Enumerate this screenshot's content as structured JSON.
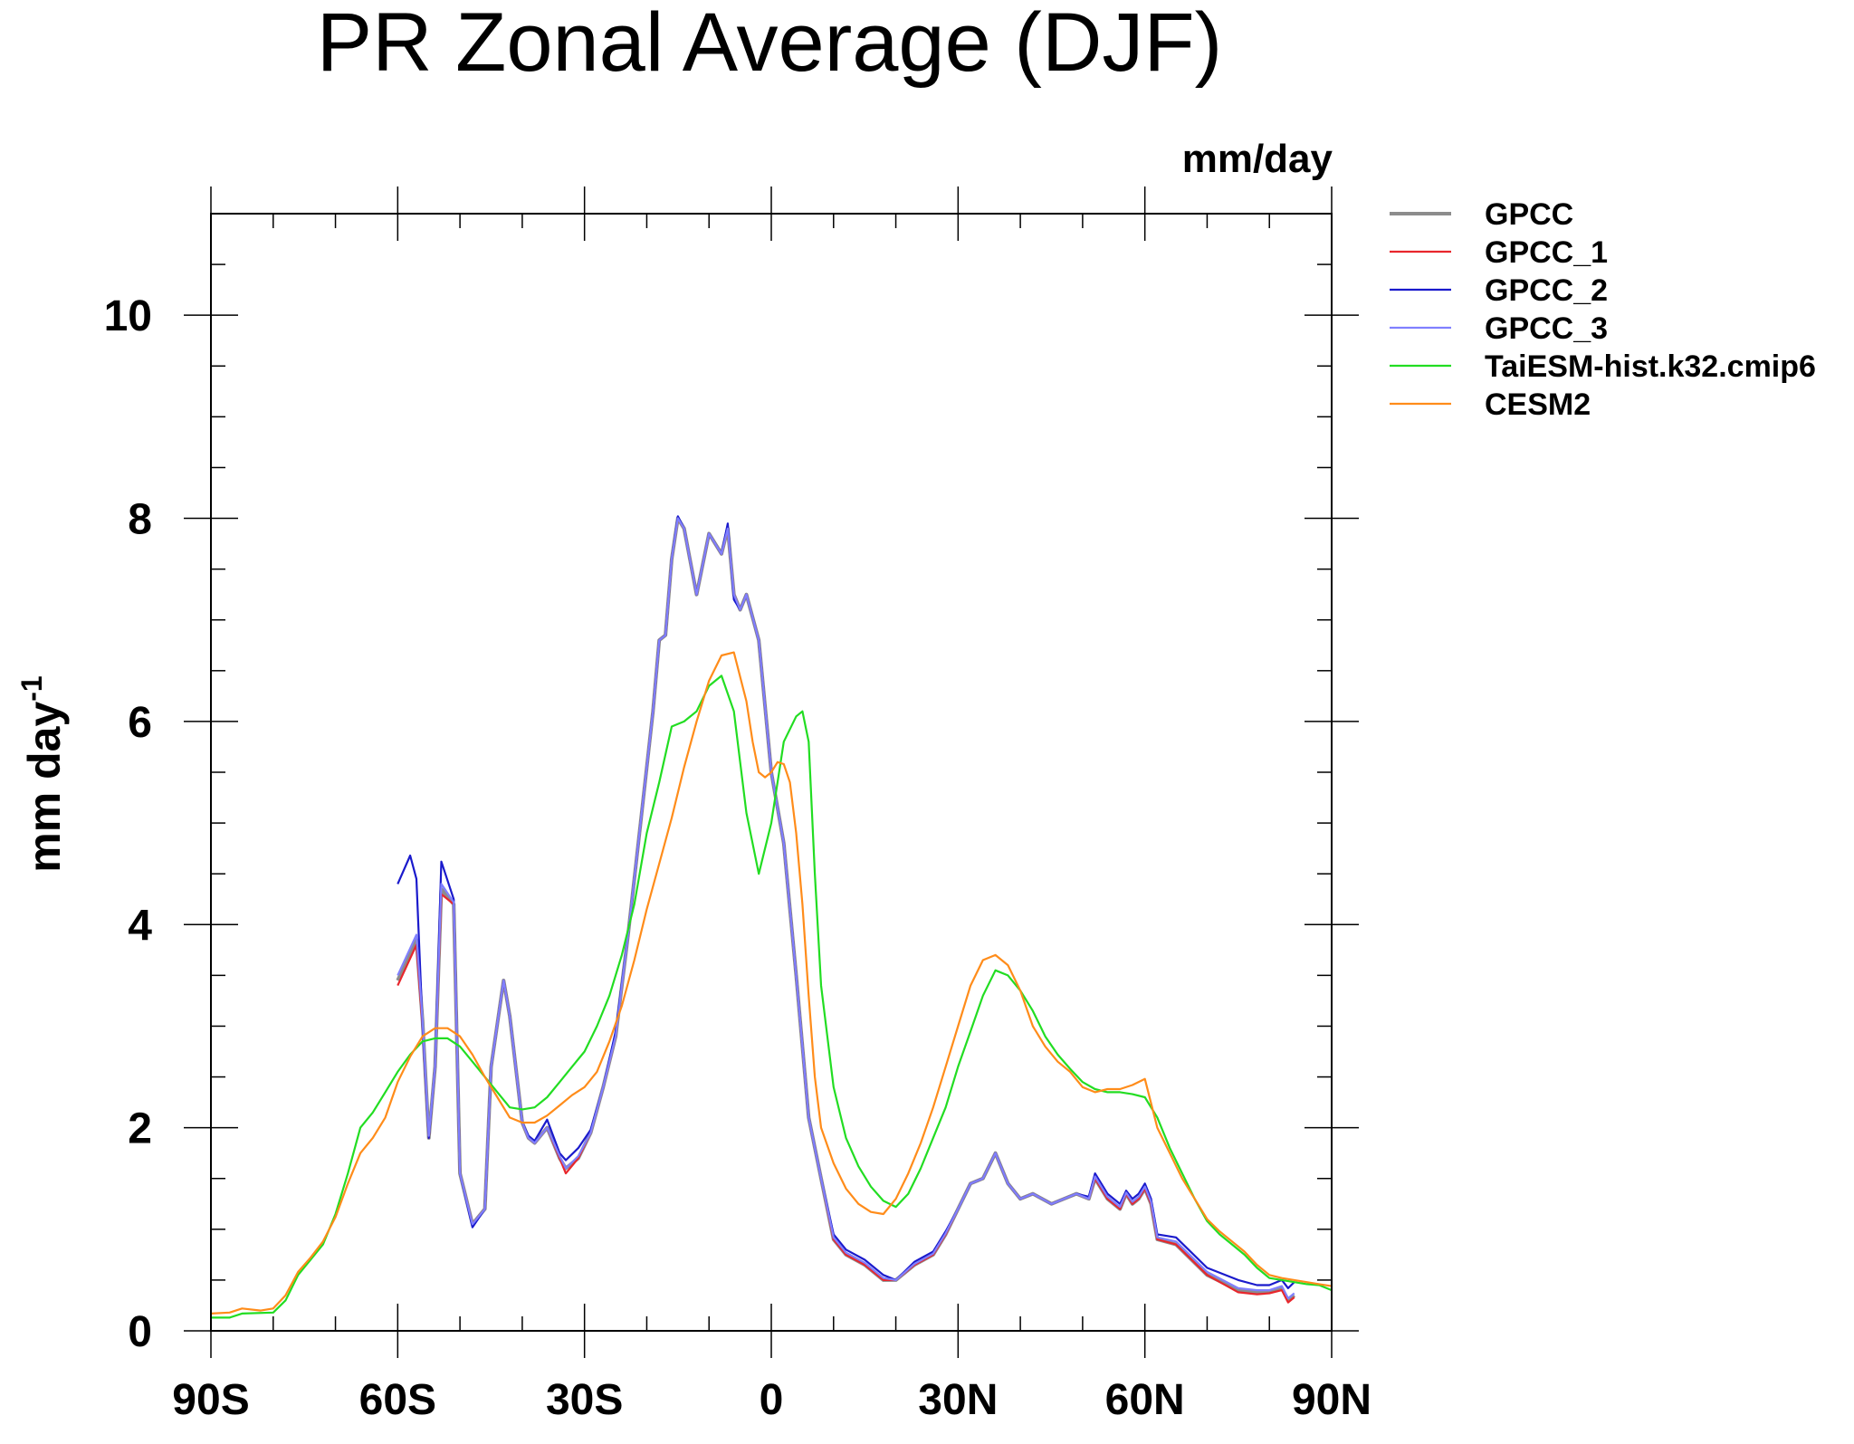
{
  "chart_data": {
    "type": "line",
    "title": "PR Zonal Average (DJF)",
    "units": "mm/day",
    "ylabel": "mm day",
    "ylabel_superscript": "-1",
    "xlim": [
      -90,
      90
    ],
    "ylim": [
      0,
      11
    ],
    "x_ticks": [
      {
        "value": -90,
        "label": "90S"
      },
      {
        "value": -60,
        "label": "60S"
      },
      {
        "value": -30,
        "label": "30S"
      },
      {
        "value": 0,
        "label": "0"
      },
      {
        "value": 30,
        "label": "30N"
      },
      {
        "value": 60,
        "label": "60N"
      },
      {
        "value": 90,
        "label": "90N"
      }
    ],
    "y_ticks": [
      {
        "value": 0,
        "label": "0"
      },
      {
        "value": 2,
        "label": "2"
      },
      {
        "value": 4,
        "label": "4"
      },
      {
        "value": 6,
        "label": "6"
      },
      {
        "value": 8,
        "label": "8"
      },
      {
        "value": 10,
        "label": "10"
      }
    ],
    "legend_position": "right",
    "series": [
      {
        "name": "GPCC",
        "color": "#8c8c8c",
        "x": [
          -60,
          -57,
          -56,
          -55,
          -54,
          -53,
          -51,
          -50,
          -48,
          -46,
          -45,
          -43,
          -42,
          -40,
          -39,
          -38,
          -36,
          -34,
          -33,
          -31,
          -29,
          -27,
          -25,
          -23,
          -21,
          -19,
          -18,
          -17,
          -16,
          -15,
          -14,
          -12,
          -10,
          -8,
          -7,
          -6,
          -5,
          -4,
          -2,
          0,
          2,
          4,
          6,
          8,
          10,
          12,
          15,
          18,
          20,
          23,
          26,
          28,
          30,
          32,
          34,
          36,
          37,
          38,
          40,
          42,
          45,
          47,
          49,
          51,
          52,
          54,
          56,
          57,
          58,
          59,
          60,
          61,
          62,
          65,
          70,
          75,
          78,
          80,
          82,
          83,
          84
        ],
        "y": [
          3.45,
          3.85,
          3.05,
          1.9,
          2.6,
          4.35,
          4.2,
          1.55,
          1.05,
          1.2,
          2.6,
          3.45,
          3.1,
          2.05,
          1.9,
          1.85,
          2.0,
          1.7,
          1.6,
          1.7,
          1.95,
          2.4,
          2.9,
          3.9,
          5.0,
          6.1,
          6.8,
          6.85,
          7.6,
          8.0,
          7.9,
          7.25,
          7.85,
          7.65,
          7.9,
          7.25,
          7.1,
          7.25,
          6.8,
          5.5,
          4.8,
          3.5,
          2.1,
          1.5,
          0.9,
          0.75,
          0.65,
          0.5,
          0.5,
          0.65,
          0.75,
          0.95,
          1.2,
          1.45,
          1.5,
          1.75,
          1.6,
          1.45,
          1.3,
          1.35,
          1.25,
          1.3,
          1.35,
          1.3,
          1.5,
          1.3,
          1.2,
          1.35,
          1.25,
          1.3,
          1.4,
          1.25,
          0.9,
          0.85,
          0.55,
          0.4,
          0.38,
          0.38,
          0.42,
          0.3,
          0.35
        ]
      },
      {
        "name": "GPCC_1",
        "color": "#e8262c",
        "x": [
          -60,
          -57,
          -56,
          -55,
          -54,
          -53,
          -51,
          -50,
          -48,
          -46,
          -45,
          -43,
          -42,
          -40,
          -39,
          -38,
          -36,
          -34,
          -33,
          -31,
          -29,
          -27,
          -25,
          -23,
          -21,
          -19,
          -18,
          -17,
          -16,
          -15,
          -14,
          -12,
          -10,
          -8,
          -7,
          -6,
          -5,
          -4,
          -2,
          0,
          2,
          4,
          6,
          8,
          10,
          12,
          15,
          18,
          20,
          23,
          26,
          28,
          30,
          32,
          34,
          36,
          37,
          38,
          40,
          42,
          45,
          47,
          49,
          51,
          52,
          54,
          56,
          57,
          58,
          59,
          60,
          61,
          62,
          65,
          70,
          75,
          78,
          80,
          82,
          83,
          84
        ],
        "y": [
          3.4,
          3.8,
          3.0,
          1.9,
          2.6,
          4.3,
          4.2,
          1.55,
          1.05,
          1.2,
          2.6,
          3.45,
          3.1,
          2.05,
          1.9,
          1.85,
          2.0,
          1.7,
          1.55,
          1.7,
          1.95,
          2.4,
          2.9,
          3.9,
          5.0,
          6.1,
          6.8,
          6.85,
          7.6,
          8.0,
          7.9,
          7.25,
          7.85,
          7.65,
          7.9,
          7.25,
          7.1,
          7.25,
          6.8,
          5.5,
          4.8,
          3.5,
          2.1,
          1.5,
          0.9,
          0.75,
          0.65,
          0.5,
          0.5,
          0.65,
          0.75,
          0.95,
          1.2,
          1.45,
          1.5,
          1.75,
          1.6,
          1.45,
          1.3,
          1.35,
          1.25,
          1.3,
          1.35,
          1.3,
          1.5,
          1.3,
          1.2,
          1.35,
          1.25,
          1.3,
          1.4,
          1.25,
          0.9,
          0.85,
          0.55,
          0.38,
          0.36,
          0.37,
          0.4,
          0.28,
          0.33
        ]
      },
      {
        "name": "GPCC_2",
        "color": "#1a1acc",
        "x": [
          -60,
          -58,
          -57,
          -56,
          -55,
          -54,
          -53,
          -51,
          -50,
          -48,
          -46,
          -45,
          -43,
          -42,
          -40,
          -39,
          -38,
          -36,
          -34,
          -33,
          -31,
          -29,
          -27,
          -25,
          -23,
          -21,
          -19,
          -18,
          -17,
          -16,
          -15,
          -14,
          -12,
          -10,
          -8,
          -7,
          -6,
          -5,
          -4,
          -2,
          0,
          2,
          4,
          6,
          8,
          10,
          12,
          15,
          18,
          20,
          23,
          26,
          28,
          30,
          32,
          34,
          36,
          37,
          38,
          40,
          42,
          45,
          47,
          49,
          51,
          52,
          54,
          56,
          57,
          58,
          59,
          60,
          61,
          62,
          65,
          70,
          75,
          78,
          80,
          82,
          83,
          84
        ],
        "y": [
          4.4,
          4.68,
          4.45,
          3.0,
          1.9,
          2.6,
          4.62,
          4.25,
          1.55,
          1.02,
          1.2,
          2.6,
          3.45,
          3.1,
          2.05,
          1.92,
          1.87,
          2.08,
          1.75,
          1.68,
          1.8,
          1.98,
          2.4,
          2.95,
          3.9,
          5.0,
          6.1,
          6.8,
          6.85,
          7.6,
          8.02,
          7.9,
          7.25,
          7.85,
          7.65,
          7.95,
          7.2,
          7.1,
          7.25,
          6.8,
          5.5,
          4.8,
          3.5,
          2.1,
          1.5,
          0.95,
          0.8,
          0.7,
          0.55,
          0.5,
          0.68,
          0.78,
          0.98,
          1.2,
          1.45,
          1.5,
          1.75,
          1.6,
          1.45,
          1.3,
          1.35,
          1.25,
          1.3,
          1.35,
          1.32,
          1.55,
          1.35,
          1.25,
          1.38,
          1.3,
          1.35,
          1.45,
          1.3,
          0.95,
          0.92,
          0.62,
          0.5,
          0.45,
          0.45,
          0.5,
          0.42,
          0.48
        ]
      },
      {
        "name": "GPCC_3",
        "color": "#8080ff",
        "x": [
          -60,
          -57,
          -56,
          -55,
          -54,
          -53,
          -51,
          -50,
          -48,
          -46,
          -45,
          -43,
          -42,
          -40,
          -39,
          -38,
          -36,
          -34,
          -33,
          -31,
          -29,
          -27,
          -25,
          -23,
          -21,
          -19,
          -18,
          -17,
          -16,
          -15,
          -14,
          -12,
          -10,
          -8,
          -7,
          -6,
          -5,
          -4,
          -2,
          0,
          2,
          4,
          6,
          8,
          10,
          12,
          15,
          18,
          20,
          23,
          26,
          28,
          30,
          32,
          34,
          36,
          37,
          38,
          40,
          42,
          45,
          47,
          49,
          51,
          52,
          54,
          56,
          57,
          58,
          59,
          60,
          61,
          62,
          65,
          70,
          75,
          78,
          80,
          82,
          83,
          84
        ],
        "y": [
          3.5,
          3.9,
          3.05,
          1.92,
          2.6,
          4.4,
          4.22,
          1.55,
          1.05,
          1.2,
          2.6,
          3.45,
          3.1,
          2.05,
          1.9,
          1.85,
          2.0,
          1.72,
          1.6,
          1.72,
          1.95,
          2.4,
          2.9,
          3.9,
          5.0,
          6.1,
          6.8,
          6.85,
          7.6,
          8.0,
          7.9,
          7.25,
          7.85,
          7.65,
          7.9,
          7.25,
          7.1,
          7.25,
          6.8,
          5.5,
          4.8,
          3.5,
          2.1,
          1.5,
          0.92,
          0.77,
          0.67,
          0.52,
          0.5,
          0.66,
          0.76,
          0.96,
          1.2,
          1.45,
          1.5,
          1.75,
          1.6,
          1.45,
          1.3,
          1.35,
          1.25,
          1.3,
          1.35,
          1.3,
          1.52,
          1.32,
          1.22,
          1.36,
          1.27,
          1.32,
          1.42,
          1.27,
          0.92,
          0.88,
          0.58,
          0.42,
          0.4,
          0.4,
          0.44,
          0.32,
          0.37
        ]
      },
      {
        "name": "TaiESM-hist.k32.cmip6",
        "color": "#22dd22",
        "x": [
          -90,
          -87,
          -85,
          -80,
          -78,
          -76,
          -74,
          -72,
          -70,
          -68,
          -66,
          -64,
          -62,
          -60,
          -58,
          -56,
          -54,
          -52,
          -50,
          -48,
          -46,
          -44,
          -42,
          -40,
          -38,
          -36,
          -34,
          -32,
          -30,
          -28,
          -26,
          -24,
          -22,
          -20,
          -18,
          -16,
          -14,
          -12,
          -10,
          -8,
          -6,
          -4,
          -2,
          0,
          2,
          4,
          5,
          6,
          7,
          8,
          10,
          12,
          14,
          16,
          18,
          20,
          22,
          24,
          26,
          28,
          30,
          32,
          34,
          36,
          38,
          40,
          42,
          44,
          46,
          48,
          50,
          52,
          54,
          56,
          58,
          60,
          62,
          64,
          66,
          68,
          70,
          72,
          74,
          76,
          78,
          80,
          82,
          84,
          86,
          88,
          90
        ],
        "y": [
          0.13,
          0.13,
          0.17,
          0.18,
          0.3,
          0.55,
          0.7,
          0.85,
          1.15,
          1.55,
          2.0,
          2.15,
          2.35,
          2.55,
          2.72,
          2.85,
          2.88,
          2.88,
          2.8,
          2.65,
          2.5,
          2.35,
          2.2,
          2.18,
          2.2,
          2.3,
          2.45,
          2.6,
          2.75,
          3.0,
          3.3,
          3.7,
          4.2,
          4.9,
          5.4,
          5.95,
          6.0,
          6.1,
          6.35,
          6.45,
          6.1,
          5.1,
          4.5,
          5.0,
          5.8,
          6.05,
          6.1,
          5.8,
          4.5,
          3.4,
          2.4,
          1.9,
          1.62,
          1.42,
          1.28,
          1.22,
          1.35,
          1.6,
          1.9,
          2.2,
          2.6,
          2.95,
          3.3,
          3.55,
          3.5,
          3.35,
          3.15,
          2.9,
          2.72,
          2.58,
          2.45,
          2.38,
          2.35,
          2.35,
          2.33,
          2.3,
          2.1,
          1.8,
          1.55,
          1.3,
          1.08,
          0.95,
          0.85,
          0.75,
          0.62,
          0.52,
          0.5,
          0.48,
          0.46,
          0.45,
          0.4
        ]
      },
      {
        "name": "CESM2",
        "color": "#ff8c1a",
        "x": [
          -90,
          -87,
          -85,
          -82,
          -80,
          -78,
          -76,
          -74,
          -72,
          -70,
          -68,
          -66,
          -64,
          -62,
          -60,
          -58,
          -56,
          -54,
          -52,
          -50,
          -48,
          -46,
          -44,
          -42,
          -40,
          -38,
          -36,
          -34,
          -32,
          -30,
          -28,
          -26,
          -24,
          -22,
          -20,
          -18,
          -16,
          -14,
          -12,
          -10,
          -8,
          -6,
          -4,
          -3,
          -2,
          -1,
          0,
          1,
          2,
          3,
          4,
          5,
          6,
          7,
          8,
          10,
          12,
          14,
          16,
          18,
          20,
          22,
          24,
          26,
          28,
          30,
          32,
          34,
          36,
          38,
          40,
          42,
          44,
          46,
          48,
          50,
          52,
          54,
          56,
          58,
          60,
          62,
          64,
          66,
          68,
          70,
          72,
          74,
          76,
          78,
          80,
          82,
          84,
          86,
          88,
          90
        ],
        "y": [
          0.17,
          0.18,
          0.22,
          0.2,
          0.22,
          0.35,
          0.58,
          0.72,
          0.88,
          1.12,
          1.45,
          1.75,
          1.9,
          2.1,
          2.45,
          2.7,
          2.9,
          2.98,
          2.98,
          2.9,
          2.72,
          2.5,
          2.3,
          2.1,
          2.05,
          2.05,
          2.12,
          2.22,
          2.32,
          2.4,
          2.55,
          2.85,
          3.2,
          3.65,
          4.15,
          4.6,
          5.05,
          5.55,
          6.0,
          6.4,
          6.65,
          6.68,
          6.2,
          5.8,
          5.5,
          5.45,
          5.5,
          5.6,
          5.58,
          5.4,
          4.9,
          4.2,
          3.3,
          2.5,
          2.0,
          1.65,
          1.4,
          1.25,
          1.17,
          1.15,
          1.3,
          1.55,
          1.85,
          2.2,
          2.6,
          3.0,
          3.4,
          3.65,
          3.7,
          3.6,
          3.35,
          3.0,
          2.8,
          2.65,
          2.55,
          2.4,
          2.35,
          2.38,
          2.38,
          2.42,
          2.48,
          2.0,
          1.75,
          1.5,
          1.3,
          1.1,
          0.98,
          0.88,
          0.78,
          0.65,
          0.55,
          0.52,
          0.5,
          0.48,
          0.46,
          0.44
        ]
      }
    ]
  }
}
